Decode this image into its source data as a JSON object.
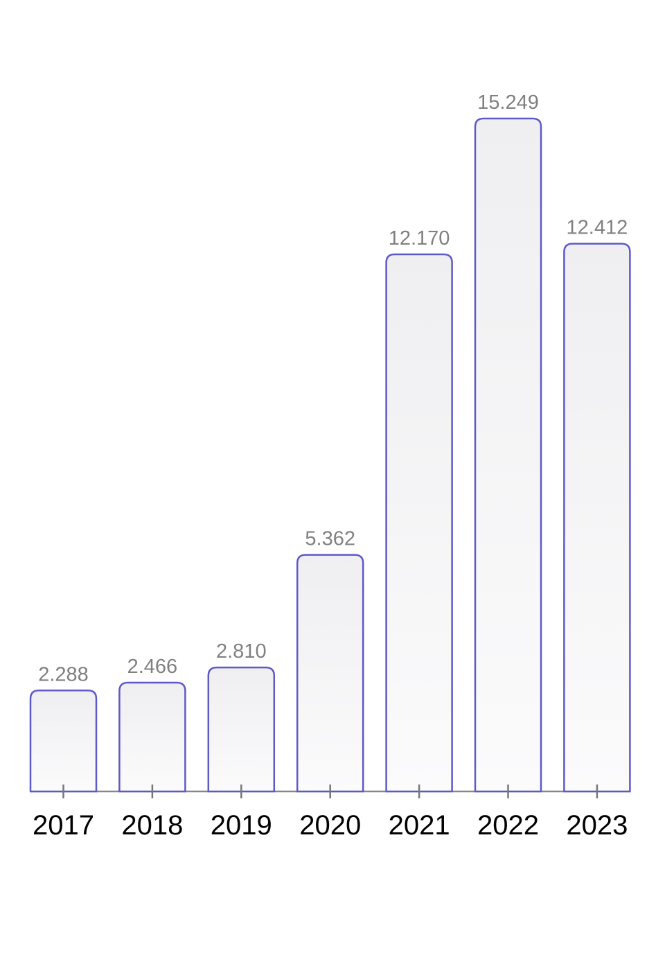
{
  "chart_data": {
    "type": "bar",
    "title": "",
    "xlabel": "",
    "ylabel": "",
    "categories": [
      "2017",
      "2018",
      "2019",
      "2020",
      "2021",
      "2022",
      "2023"
    ],
    "values": [
      2.288,
      2.466,
      2.81,
      5.362,
      12.17,
      15.249,
      12.412
    ],
    "value_labels": [
      "2.288",
      "2.466",
      "2.810",
      "5.362",
      "12.170",
      "15.249",
      "12.412"
    ],
    "ylim": [
      0,
      15.249
    ],
    "grid": false,
    "legend": "none",
    "colors": {
      "bar_stroke": "#5d59c9",
      "bar_fill_top": "#efeff1",
      "bar_fill_bottom": "#fbfbfc",
      "axis": "#888888",
      "value_label": "#808080",
      "tick_label": "#000000"
    }
  }
}
